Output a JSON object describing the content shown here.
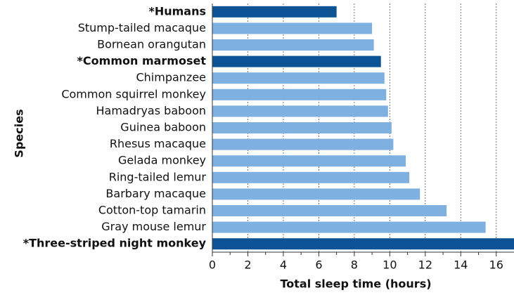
{
  "chart_data": {
    "type": "hbar",
    "x_label": "Total sleep time (hours)",
    "y_label": "Species",
    "categories": [
      "*Humans",
      "Stump-tailed macaque",
      "Bornean orangutan",
      "*Common marmoset",
      "Chimpanzee",
      "Common squirrel monkey",
      "Hamadryas baboon",
      "Guinea baboon",
      "Rhesus macaque",
      "Gelada monkey",
      "Ring-tailed lemur",
      "Barbary macaque",
      "Cotton-top tamarin",
      "Gray mouse lemur",
      "*Three-striped night monkey"
    ],
    "values": [
      7.0,
      9.0,
      9.1,
      9.5,
      9.7,
      9.8,
      9.9,
      10.1,
      10.2,
      10.9,
      11.1,
      11.7,
      13.2,
      15.4,
      17.0
    ],
    "highlighted": [
      true,
      false,
      false,
      true,
      false,
      false,
      false,
      false,
      false,
      false,
      false,
      false,
      false,
      false,
      true
    ],
    "color": "#7eb0e0",
    "highlight_color": "#0b5394",
    "xlim": [
      0,
      17
    ],
    "xticks": [
      0,
      2,
      4,
      6,
      8,
      10,
      12,
      14,
      16
    ],
    "xminorticks": [
      1,
      3,
      5,
      7,
      9,
      11,
      13,
      15
    ],
    "grid": true
  }
}
